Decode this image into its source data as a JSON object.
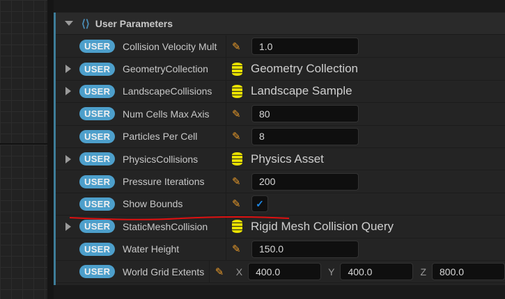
{
  "section": {
    "title": "User Parameters",
    "icon": "parameter-icon"
  },
  "badge_label": "USER",
  "params": [
    {
      "name": "Collision Velocity Mult",
      "type": "value",
      "value": "1.0",
      "expandable": false
    },
    {
      "name": "GeometryCollection",
      "type": "asset",
      "value": "Geometry Collection",
      "expandable": true
    },
    {
      "name": "LandscapeCollisions",
      "type": "asset",
      "value": "Landscape Sample",
      "expandable": true
    },
    {
      "name": "Num Cells Max Axis",
      "type": "value",
      "value": "80",
      "expandable": false
    },
    {
      "name": "Particles Per Cell",
      "type": "value",
      "value": "8",
      "expandable": false
    },
    {
      "name": "PhysicsCollisions",
      "type": "asset",
      "value": "Physics Asset",
      "expandable": true
    },
    {
      "name": "Pressure Iterations",
      "type": "value",
      "value": "200",
      "expandable": false
    },
    {
      "name": "Show Bounds",
      "type": "bool",
      "value": true,
      "expandable": false
    },
    {
      "name": "StaticMeshCollision",
      "type": "asset",
      "value": "Rigid Mesh Collision Query",
      "expandable": true
    },
    {
      "name": "Water Height",
      "type": "value",
      "value": "150.0",
      "expandable": false
    },
    {
      "name": "World Grid Extents",
      "type": "vector",
      "x": "400.0",
      "y": "400.0",
      "z": "800.0",
      "labels": [
        "X",
        "Y",
        "Z"
      ],
      "expandable": false
    }
  ],
  "colors": {
    "badge": "#4d9fcb",
    "accent": "#3e7d99",
    "pencil": "#e89a2a",
    "asset_icon": "#e8e000",
    "annotation": "#e01010"
  }
}
